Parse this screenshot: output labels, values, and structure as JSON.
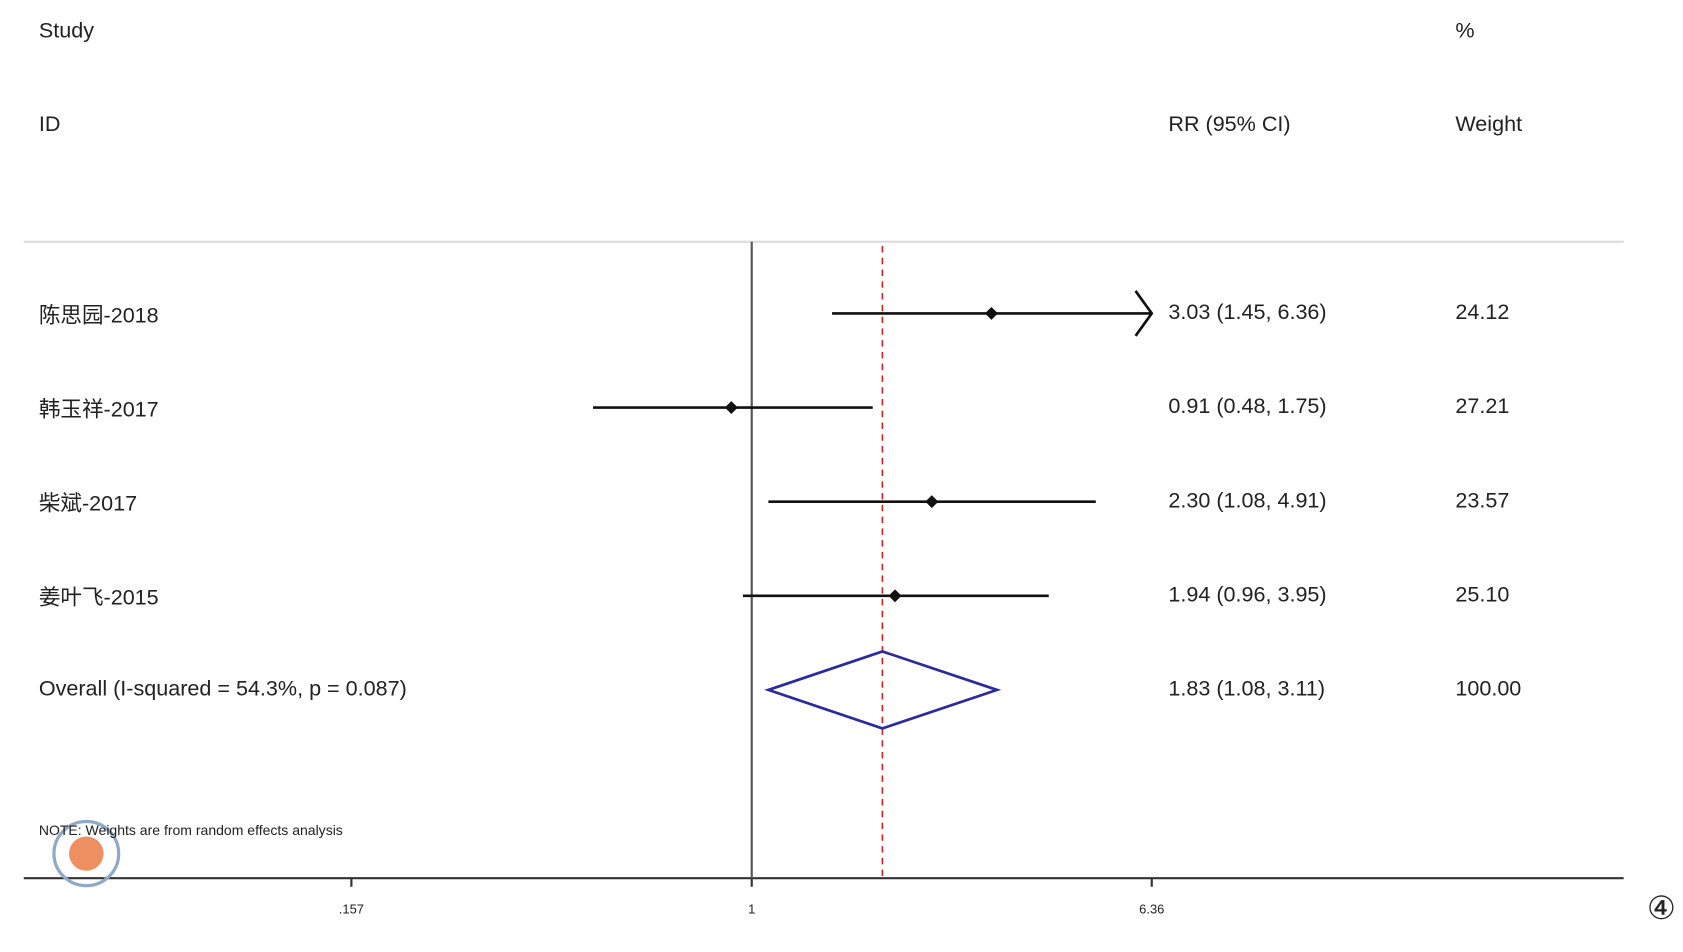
{
  "chart_data": {
    "type": "forest",
    "header": {
      "study": "Study",
      "id": "ID",
      "pct": "%",
      "effect": "RR (95% CI)",
      "weight": "Weight"
    },
    "studies": [
      {
        "name": "陈思园-2018",
        "rr": 3.03,
        "ci": [
          1.45,
          6.36
        ],
        "label": "3.03 (1.45, 6.36)",
        "weight": "24.12"
      },
      {
        "name": "韩玉祥-2017",
        "rr": 0.91,
        "ci": [
          0.48,
          1.75
        ],
        "label": "0.91 (0.48, 1.75)",
        "weight": "27.21"
      },
      {
        "name": "柴斌-2017",
        "rr": 2.3,
        "ci": [
          1.08,
          4.91
        ],
        "label": "2.30 (1.08, 4.91)",
        "weight": "23.57"
      },
      {
        "name": "姜叶飞-2015",
        "rr": 1.94,
        "ci": [
          0.96,
          3.95
        ],
        "label": "1.94 (0.96, 3.95)",
        "weight": "25.10"
      }
    ],
    "overall": {
      "name": "Overall  (I-squared = 54.3%, p = 0.087)",
      "rr": 1.83,
      "ci": [
        1.08,
        3.11
      ],
      "label": "1.83 (1.08, 3.11)",
      "weight": "100.00",
      "color": "#2b2b9a",
      "line_color": "#cc2222"
    },
    "note": "NOTE: Weights are from random effects analysis",
    "null_value": 1,
    "log_scale": true,
    "xlim": [
      0.0345,
      56.4
    ],
    "xticks": [
      {
        "value": 0.157,
        "label": ".157"
      },
      1,
      6.36
    ],
    "figure_marker": "④"
  }
}
